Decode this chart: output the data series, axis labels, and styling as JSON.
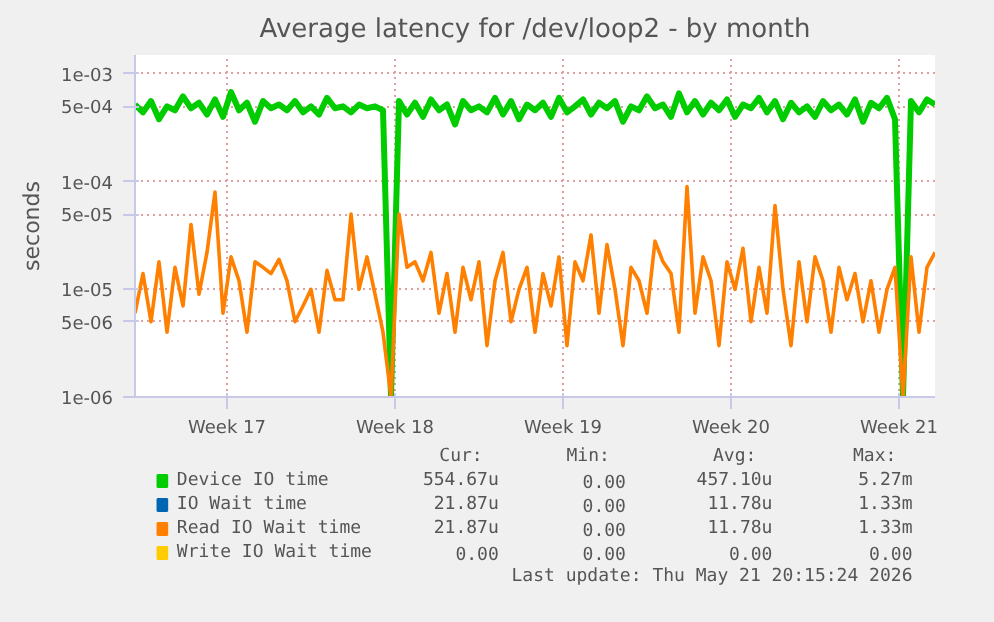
{
  "chart_data": {
    "type": "line",
    "title": "Average latency for /dev/loop2 - by month",
    "ylabel": "seconds",
    "x": [
      "2026-04-18T12:00",
      "2026-04-18T20:00",
      "2026-04-19T04:00",
      "2026-04-19T12:00",
      "2026-04-19T20:00",
      "2026-04-20T04:00",
      "2026-04-20T12:00",
      "2026-04-20T20:00",
      "2026-04-21T04:00",
      "2026-04-21T12:00",
      "2026-04-21T20:00",
      "2026-04-22T04:00",
      "2026-04-22T12:00",
      "2026-04-22T20:00",
      "2026-04-23T04:00",
      "2026-04-23T12:00",
      "2026-04-23T20:00",
      "2026-04-24T04:00",
      "2026-04-24T12:00",
      "2026-04-24T20:00",
      "2026-04-25T04:00",
      "2026-04-25T12:00",
      "2026-04-25T20:00",
      "2026-04-26T04:00",
      "2026-04-26T12:00",
      "2026-04-26T20:00",
      "2026-04-27T04:00",
      "2026-04-27T12:00",
      "2026-04-27T20:00",
      "2026-04-28T04:00",
      "2026-04-28T12:00",
      "2026-04-28T20:00",
      "2026-04-29T04:00",
      "2026-04-29T12:00",
      "2026-04-29T20:00",
      "2026-04-30T04:00",
      "2026-04-30T12:00",
      "2026-04-30T20:00",
      "2026-05-01T04:00",
      "2026-05-01T12:00",
      "2026-05-01T20:00",
      "2026-05-02T04:00",
      "2026-05-02T12:00",
      "2026-05-02T20:00",
      "2026-05-03T04:00",
      "2026-05-03T12:00",
      "2026-05-03T20:00",
      "2026-05-04T04:00",
      "2026-05-04T12:00",
      "2026-05-04T20:00",
      "2026-05-05T04:00",
      "2026-05-05T12:00",
      "2026-05-05T20:00",
      "2026-05-06T04:00",
      "2026-05-06T12:00",
      "2026-05-06T20:00",
      "2026-05-07T04:00",
      "2026-05-07T12:00",
      "2026-05-07T20:00",
      "2026-05-08T04:00",
      "2026-05-08T12:00",
      "2026-05-08T20:00",
      "2026-05-09T04:00",
      "2026-05-09T12:00",
      "2026-05-09T20:00",
      "2026-05-10T04:00",
      "2026-05-10T12:00",
      "2026-05-10T20:00",
      "2026-05-11T04:00",
      "2026-05-11T12:00",
      "2026-05-11T20:00",
      "2026-05-12T04:00",
      "2026-05-12T12:00",
      "2026-05-12T20:00",
      "2026-05-13T04:00",
      "2026-05-13T12:00",
      "2026-05-13T20:00",
      "2026-05-14T04:00",
      "2026-05-14T12:00",
      "2026-05-14T20:00",
      "2026-05-15T04:00",
      "2026-05-15T12:00",
      "2026-05-15T20:00",
      "2026-05-16T04:00",
      "2026-05-16T12:00",
      "2026-05-16T20:00",
      "2026-05-17T04:00",
      "2026-05-17T12:00",
      "2026-05-17T20:00",
      "2026-05-18T04:00",
      "2026-05-18T12:00",
      "2026-05-18T20:00",
      "2026-05-19T04:00",
      "2026-05-19T12:00",
      "2026-05-19T20:00",
      "2026-05-20T04:00",
      "2026-05-20T12:00",
      "2026-05-20T20:00",
      "2026-05-21T04:00",
      "2026-05-21T12:00",
      "2026-05-21T20:00"
    ],
    "series": [
      {
        "name": "Device IO time",
        "color": "#00cc00",
        "values": [
          0.00052,
          0.00044,
          0.00056,
          0.00038,
          0.0005,
          0.00046,
          0.00062,
          0.00048,
          0.00054,
          0.00042,
          0.00058,
          0.0004,
          0.00068,
          0.00046,
          0.00054,
          0.00036,
          0.00056,
          0.00048,
          0.00052,
          0.00046,
          0.00056,
          0.00044,
          0.0005,
          0.00042,
          0.0006,
          0.00048,
          0.0005,
          0.00044,
          0.00052,
          0.00048,
          0.0005,
          0.00046,
          1e-06,
          0.00056,
          0.00042,
          0.00054,
          0.0004,
          0.00058,
          0.00046,
          0.00052,
          0.00034,
          0.00056,
          0.00046,
          0.0005,
          0.00044,
          0.0006,
          0.00042,
          0.00056,
          0.00038,
          0.00052,
          0.00046,
          0.00054,
          0.0004,
          0.0006,
          0.00044,
          0.0005,
          0.00058,
          0.00042,
          0.00054,
          0.00048,
          0.00056,
          0.00036,
          0.0005,
          0.00046,
          0.00062,
          0.00048,
          0.00052,
          0.0004,
          0.00066,
          0.00044,
          0.00056,
          0.00042,
          0.00054,
          0.00046,
          0.00058,
          0.0004,
          0.00052,
          0.00048,
          0.0006,
          0.00044,
          0.00056,
          0.00038,
          0.00054,
          0.00044,
          0.0005,
          0.0004,
          0.00056,
          0.00046,
          0.00052,
          0.00042,
          0.00058,
          0.00036,
          0.00054,
          0.00048,
          0.0006,
          0.00038,
          1e-06,
          0.00056,
          0.00044,
          0.00058,
          0.00052
        ]
      },
      {
        "name": "IO Wait time",
        "color": "#0066b3",
        "values": [
          null,
          null,
          null,
          null,
          null,
          null,
          null,
          null,
          null,
          null,
          null,
          null,
          null,
          null,
          null,
          null,
          null,
          null,
          null,
          null,
          null,
          null,
          null,
          null,
          null,
          null,
          null,
          null,
          null,
          null,
          null,
          null,
          null,
          null,
          null,
          null,
          null,
          null,
          null,
          null,
          null,
          null,
          null,
          null,
          null,
          null,
          null,
          null,
          null,
          null,
          null,
          null,
          null,
          null,
          null,
          null,
          null,
          null,
          null,
          null,
          null,
          null,
          null,
          null,
          null,
          null,
          null,
          null,
          null,
          null,
          null,
          null,
          null,
          null,
          null,
          null,
          null,
          null,
          null,
          null,
          null,
          null,
          null,
          null,
          null,
          null,
          null,
          null,
          null,
          null,
          null,
          null,
          null,
          null,
          null,
          null,
          null,
          null,
          null,
          null,
          null
        ]
      },
      {
        "name": "Read IO Wait time",
        "color": "#ff8000",
        "values": [
          6e-06,
          1.4e-05,
          5e-06,
          1.8e-05,
          4e-06,
          1.6e-05,
          7e-06,
          4e-05,
          9e-06,
          2.2e-05,
          8e-05,
          6e-06,
          2e-05,
          1.2e-05,
          4e-06,
          1.8e-05,
          1.6e-05,
          1.4e-05,
          1.9e-05,
          1.2e-05,
          5e-06,
          7e-06,
          1e-05,
          4e-06,
          1.5e-05,
          8e-06,
          8e-06,
          5e-05,
          1e-05,
          2e-05,
          9e-06,
          4e-06,
          1e-06,
          5e-05,
          1.6e-05,
          1.8e-05,
          1.2e-05,
          2.2e-05,
          6e-06,
          1.4e-05,
          4e-06,
          1.6e-05,
          8e-06,
          1.8e-05,
          3e-06,
          1.2e-05,
          2.2e-05,
          5e-06,
          1e-05,
          1.6e-05,
          4e-06,
          1.4e-05,
          7e-06,
          2e-05,
          3e-06,
          1.8e-05,
          1.2e-05,
          3.2e-05,
          6e-06,
          2.6e-05,
          1e-05,
          3e-06,
          1.6e-05,
          1.2e-05,
          6e-06,
          2.8e-05,
          1.8e-05,
          1.4e-05,
          4e-06,
          9e-05,
          6e-06,
          2e-05,
          1.2e-05,
          3e-06,
          1.8e-05,
          1e-05,
          2.4e-05,
          5e-06,
          1.6e-05,
          6e-06,
          6e-05,
          1e-05,
          3e-06,
          1.8e-05,
          5e-06,
          2e-05,
          1.2e-05,
          4e-06,
          1.6e-05,
          8e-06,
          1.4e-05,
          5e-06,
          1.2e-05,
          4e-06,
          1e-05,
          1.6e-05,
          1e-06,
          2e-05,
          4e-06,
          1.6e-05,
          2.2e-05
        ]
      },
      {
        "name": "Write IO Wait time",
        "color": "#ffcc00",
        "values": [
          null,
          null,
          null,
          null,
          null,
          null,
          null,
          null,
          null,
          null,
          null,
          null,
          null,
          null,
          null,
          null,
          null,
          null,
          null,
          null,
          null,
          null,
          null,
          null,
          null,
          null,
          null,
          null,
          null,
          null,
          null,
          null,
          null,
          null,
          null,
          null,
          null,
          null,
          null,
          null,
          null,
          null,
          null,
          null,
          null,
          null,
          null,
          null,
          null,
          null,
          null,
          null,
          null,
          null,
          null,
          null,
          null,
          null,
          null,
          null,
          null,
          null,
          null,
          null,
          null,
          null,
          null,
          null,
          null,
          null,
          null,
          null,
          null,
          null,
          null,
          null,
          null,
          null,
          null,
          null,
          null,
          null,
          null,
          null,
          null,
          null,
          null,
          null,
          null,
          null,
          null,
          null,
          null,
          null,
          null,
          null,
          null,
          null,
          null,
          null,
          null
        ]
      }
    ],
    "log": "y",
    "xlim": [
      "2026-04-18T12:00",
      "2026-05-21T20:00"
    ],
    "ylim": [
      1e-06,
      0.0015
    ],
    "xticks": [
      {
        "value": "2026-04-22T08:00",
        "label": "Week 17"
      },
      {
        "value": "2026-04-29T08:00",
        "label": "Week 18"
      },
      {
        "value": "2026-05-06T08:00",
        "label": "Week 19"
      },
      {
        "value": "2026-05-13T08:00",
        "label": "Week 20"
      },
      {
        "value": "2026-05-20T08:00",
        "label": "Week 21"
      }
    ],
    "yticks": [
      {
        "value": 0.001,
        "label": "1e-03"
      },
      {
        "value": 0.0005,
        "label": "5e-04"
      },
      {
        "value": 0.0001,
        "label": "1e-04"
      },
      {
        "value": 5e-05,
        "label": "5e-05"
      },
      {
        "value": 1e-05,
        "label": "1e-05"
      },
      {
        "value": 5e-06,
        "label": "5e-06"
      },
      {
        "value": 1e-06,
        "label": "1e-06"
      }
    ],
    "grid": true,
    "legend": "bottom",
    "marker": "none",
    "line_style": "solid",
    "annotations": [
      "Cur:",
      "Min:",
      "Avg:",
      "Max:",
      "554.67u",
      "0.00",
      "457.10u",
      "5.27m",
      "21.87u",
      "0.00",
      "11.78u",
      "1.33m",
      "21.87u",
      "0.00",
      "11.78u",
      "1.33m",
      "0.00",
      "0.00",
      "0.00",
      "0.00",
      "Last update: Thu May 21 20:15:24 2026"
    ]
  }
}
